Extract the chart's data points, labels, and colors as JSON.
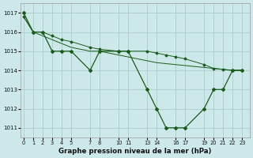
{
  "title": "Graphe pression niveau de la mer (hPa)",
  "bg_color": "#cce8e8",
  "line_color": "#1a5c1a",
  "grid_color": "#aacccc",
  "line1_x": [
    0,
    1,
    2,
    3,
    4,
    5,
    7,
    8,
    10,
    11,
    13,
    14,
    15,
    16,
    17,
    19,
    20,
    21,
    22,
    23
  ],
  "line1_y": [
    1017,
    1016,
    1016,
    1015,
    1015,
    1015,
    1014,
    1015,
    1015,
    1015,
    1013,
    1012,
    1011,
    1011,
    1011,
    1012,
    1013,
    1013,
    1014,
    1014
  ],
  "line2_x": [
    0,
    1,
    2,
    3,
    4,
    5,
    7,
    8,
    10,
    11,
    13,
    14,
    15,
    16,
    17,
    19,
    20,
    21,
    22,
    23
  ],
  "line2_y": [
    1016.8,
    1016.0,
    1015.8,
    1015.6,
    1015.4,
    1015.2,
    1015.0,
    1015.0,
    1014.8,
    1014.7,
    1014.5,
    1014.4,
    1014.35,
    1014.3,
    1014.25,
    1014.15,
    1014.1,
    1014.05,
    1014.0,
    1014.0
  ],
  "line3_x": [
    0,
    1,
    2,
    3,
    4,
    5,
    7,
    8,
    10,
    11,
    13,
    14,
    15,
    16,
    17,
    19,
    20,
    21,
    22,
    23
  ],
  "line3_y": [
    1016.8,
    1016.0,
    1016.0,
    1015.8,
    1015.6,
    1015.5,
    1015.2,
    1015.1,
    1015.0,
    1015.0,
    1015.0,
    1014.9,
    1014.8,
    1014.7,
    1014.6,
    1014.3,
    1014.1,
    1014.05,
    1014.0,
    1014.0
  ],
  "xtick_pos": [
    0,
    1,
    2,
    3,
    4,
    5,
    7,
    8,
    10,
    11,
    13,
    14,
    16,
    17,
    19,
    20,
    21,
    22,
    23
  ],
  "xtick_labels": [
    "0",
    "1",
    "2",
    "3",
    "4",
    "5",
    "7",
    "8",
    "10",
    "11",
    "13",
    "14",
    "16",
    "17",
    "19",
    "20",
    "21",
    "22",
    "23"
  ],
  "ytick_pos": [
    1011,
    1012,
    1013,
    1014,
    1015,
    1016,
    1017
  ],
  "ytick_labels": [
    "1011",
    "1012",
    "1013",
    "1014",
    "1015",
    "1016",
    "1017"
  ],
  "xlim": [
    -0.3,
    23.8
  ],
  "ylim": [
    1010.5,
    1017.5
  ],
  "figw": 3.2,
  "figh": 2.0,
  "dpi": 100
}
